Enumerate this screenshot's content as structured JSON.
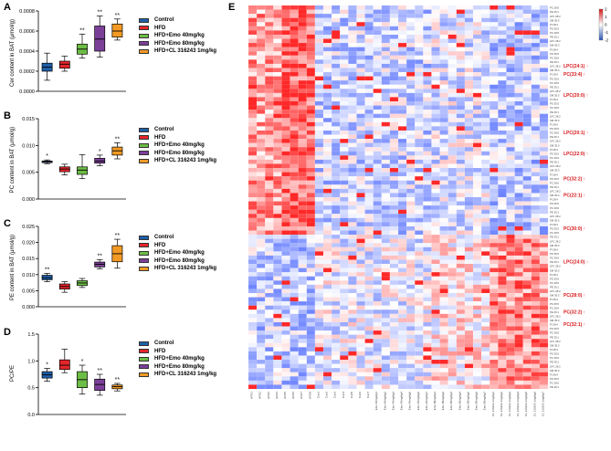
{
  "panels": {
    "A": {
      "letter": "A",
      "ylabel": "Cer content in BAT (μmol/g)"
    },
    "B": {
      "letter": "B",
      "ylabel": "PC content in BAT (μmol/g)"
    },
    "C": {
      "letter": "C",
      "ylabel": "PE content in BAT (μmol/g)"
    },
    "D": {
      "letter": "D",
      "ylabel": "PC/PE"
    },
    "E": {
      "letter": "E"
    }
  },
  "legend": {
    "items": [
      {
        "label": "Control",
        "color": "#1f5fa8"
      },
      {
        "label": "HFD",
        "color": "#e3262b"
      },
      {
        "label": "HFD+Emo 40mg/kg",
        "color": "#6cbd45"
      },
      {
        "label": "HFD+Emo 80mg/kg",
        "color": "#7b3f98"
      },
      {
        "label": "HFD+CL 316243 1mg/kg",
        "color": "#f39a25"
      }
    ]
  },
  "chart_data": [
    {
      "type": "box",
      "panel": "A",
      "ylabel": "Cer content in BAT (μmol/g)",
      "ylim": [
        0,
        0.0008
      ],
      "yticks": [
        "0.0000",
        "0.0002",
        "0.0004",
        "0.0006",
        "0.0008"
      ],
      "groups": [
        "Control",
        "HFD",
        "HFD+Emo 40mg/kg",
        "HFD+Emo 80mg/kg",
        "HFD+CL 316243 1mg/kg"
      ],
      "boxes": [
        {
          "min": 0.00011,
          "q1": 0.0002,
          "median": 0.00024,
          "q3": 0.00028,
          "max": 0.00038
        },
        {
          "min": 0.0002,
          "q1": 0.00023,
          "median": 0.00027,
          "q3": 0.0003,
          "max": 0.00035
        },
        {
          "min": 0.00033,
          "q1": 0.00037,
          "median": 0.00042,
          "q3": 0.00047,
          "max": 0.00057
        },
        {
          "min": 0.00034,
          "q1": 0.0004,
          "median": 0.00052,
          "q3": 0.00065,
          "max": 0.00075
        },
        {
          "min": 0.00051,
          "q1": 0.00054,
          "median": 0.0006,
          "q3": 0.00067,
          "max": 0.00072
        }
      ],
      "significance": [
        "",
        "",
        "**",
        "**",
        "**"
      ]
    },
    {
      "type": "box",
      "panel": "B",
      "ylabel": "PC content in BAT (μmol/g)",
      "ylim": [
        0,
        0.015
      ],
      "yticks": [
        "0.000",
        "0.005",
        "0.010",
        "0.015"
      ],
      "groups": [
        "Control",
        "HFD",
        "HFD+Emo 40mg/kg",
        "HFD+Emo 80mg/kg",
        "HFD+CL 316243 1mg/kg"
      ],
      "boxes": [
        {
          "min": 0.0066,
          "q1": 0.0068,
          "median": 0.007,
          "q3": 0.0071,
          "max": 0.0073
        },
        {
          "min": 0.0045,
          "q1": 0.0051,
          "median": 0.0056,
          "q3": 0.006,
          "max": 0.0065
        },
        {
          "min": 0.0038,
          "q1": 0.0046,
          "median": 0.0054,
          "q3": 0.006,
          "max": 0.0083
        },
        {
          "min": 0.0062,
          "q1": 0.0067,
          "median": 0.0071,
          "q3": 0.0076,
          "max": 0.0082
        },
        {
          "min": 0.0075,
          "q1": 0.0082,
          "median": 0.009,
          "q3": 0.0097,
          "max": 0.0105
        }
      ],
      "significance": [
        "*",
        "",
        "",
        "*",
        "**"
      ]
    },
    {
      "type": "box",
      "panel": "C",
      "ylabel": "PE content in BAT (μmol/g)",
      "ylim": [
        0,
        0.025
      ],
      "yticks": [
        "0.000",
        "0.005",
        "0.010",
        "0.015",
        "0.020",
        "0.025"
      ],
      "groups": [
        "Control",
        "HFD",
        "HFD+Emo 40mg/kg",
        "HFD+Emo 80mg/kg",
        "HFD+CL 316243 1mg/kg"
      ],
      "boxes": [
        {
          "min": 0.0078,
          "q1": 0.0084,
          "median": 0.009,
          "q3": 0.0098,
          "max": 0.0104
        },
        {
          "min": 0.0045,
          "q1": 0.0055,
          "median": 0.0063,
          "q3": 0.0071,
          "max": 0.0078
        },
        {
          "min": 0.006,
          "q1": 0.0066,
          "median": 0.0074,
          "q3": 0.0081,
          "max": 0.0088
        },
        {
          "min": 0.0118,
          "q1": 0.0124,
          "median": 0.0132,
          "q3": 0.0139,
          "max": 0.0147
        },
        {
          "min": 0.012,
          "q1": 0.014,
          "median": 0.0165,
          "q3": 0.019,
          "max": 0.021
        }
      ],
      "significance": [
        "**",
        "",
        "",
        "**",
        "**"
      ]
    },
    {
      "type": "box",
      "panel": "D",
      "ylabel": "PC/PE",
      "ylim": [
        0,
        1.5
      ],
      "yticks": [
        "0.0",
        "0.5",
        "1.0",
        "1.5"
      ],
      "groups": [
        "Control",
        "HFD",
        "HFD+Emo 40mg/kg",
        "HFD+Emo 80mg/kg",
        "HFD+CL 316243 1mg/kg"
      ],
      "boxes": [
        {
          "min": 0.62,
          "q1": 0.68,
          "median": 0.74,
          "q3": 0.8,
          "max": 0.86
        },
        {
          "min": 0.78,
          "q1": 0.84,
          "median": 0.92,
          "q3": 1.02,
          "max": 1.22
        },
        {
          "min": 0.38,
          "q1": 0.5,
          "median": 0.65,
          "q3": 0.8,
          "max": 0.92
        },
        {
          "min": 0.36,
          "q1": 0.45,
          "median": 0.56,
          "q3": 0.66,
          "max": 0.75
        },
        {
          "min": 0.44,
          "q1": 0.48,
          "median": 0.52,
          "q3": 0.55,
          "max": 0.58
        }
      ],
      "significance": [
        "*",
        "",
        "*",
        "**",
        "**"
      ]
    },
    {
      "type": "heatmap",
      "panel": "E",
      "rows": 92,
      "cols": 36,
      "scale_ticks": [
        "2",
        "1",
        "0",
        "-1",
        "-2"
      ],
      "scale_colors": [
        "#d7191c",
        "#ffffff",
        "#2b57b3"
      ],
      "column_groups": [
        {
          "label": "HFD",
          "count": 8
        },
        {
          "label": "Con",
          "count": 7
        },
        {
          "label": "Emo 40mg/kg",
          "count": 7
        },
        {
          "label": "Emo 80mg/kg",
          "count": 7
        },
        {
          "label": "CL 316243 1mg/kg",
          "count": 7
        }
      ],
      "highlighted_lipids": [
        "LPC(24:1)",
        "PC(33:4)",
        "LPC(20:0)",
        "LPC(20:1)",
        "LPC(22:0)",
        "PC(32:2)",
        "PC(22:1)",
        "PC(30:0)",
        "LPC(24:0)",
        "PC(28:0)",
        "PC(32:2)",
        "PC(32:1)"
      ]
    }
  ]
}
